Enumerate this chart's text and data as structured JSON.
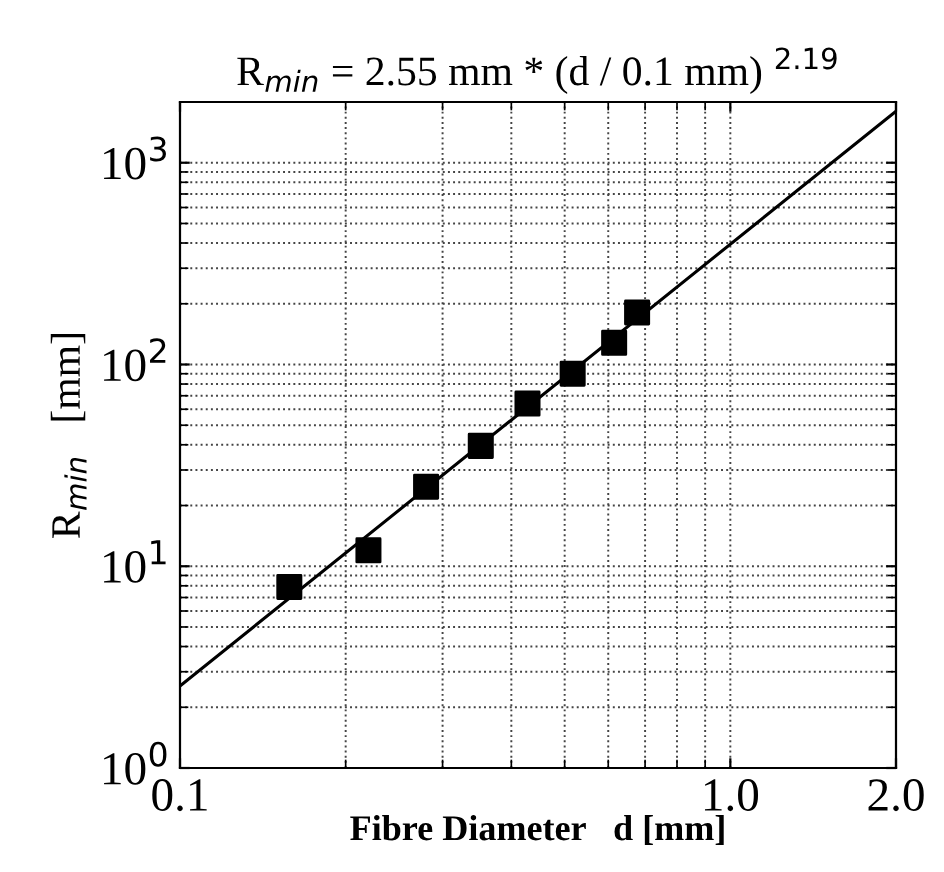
{
  "chart_data": {
    "type": "scatter",
    "title": "R$_{min}$ = 2.55 mm * (d / 0.1 mm) $^{2.19}$",
    "xlabel": "Fibre Diameter   d [mm]",
    "ylabel": "R$_{min}$   [mm]",
    "log": "xy",
    "xlim": [
      0.1,
      2.0
    ],
    "ylim": [
      1,
      2000
    ],
    "xticks": [
      0.1,
      {
        "value": 1.0,
        "label": "1.0"
      },
      {
        "value": 2.0,
        "label": "2.0"
      }
    ],
    "yticks": [
      {
        "value": 1,
        "label": "10$^{0}$"
      },
      {
        "value": 10,
        "label": "10$^{1}$"
      },
      {
        "value": 100,
        "label": "10$^{2}$"
      },
      {
        "value": 1000,
        "label": "10$^{3}$"
      }
    ],
    "grid": true,
    "series": [
      {
        "color": "#000000",
        "marker": "square",
        "x": [
          0.158,
          0.22,
          0.28,
          0.352,
          0.428,
          0.517,
          0.615,
          0.677
        ],
        "values": [
          7.9,
          12.0,
          24.8,
          39.5,
          64,
          90,
          128,
          181
        ]
      },
      {
        "type": "line",
        "color": "#000000",
        "marker": "none",
        "line_style": "solid",
        "x": [
          0.1,
          2.0
        ],
        "values": [
          2.55,
          1800
        ]
      }
    ]
  }
}
